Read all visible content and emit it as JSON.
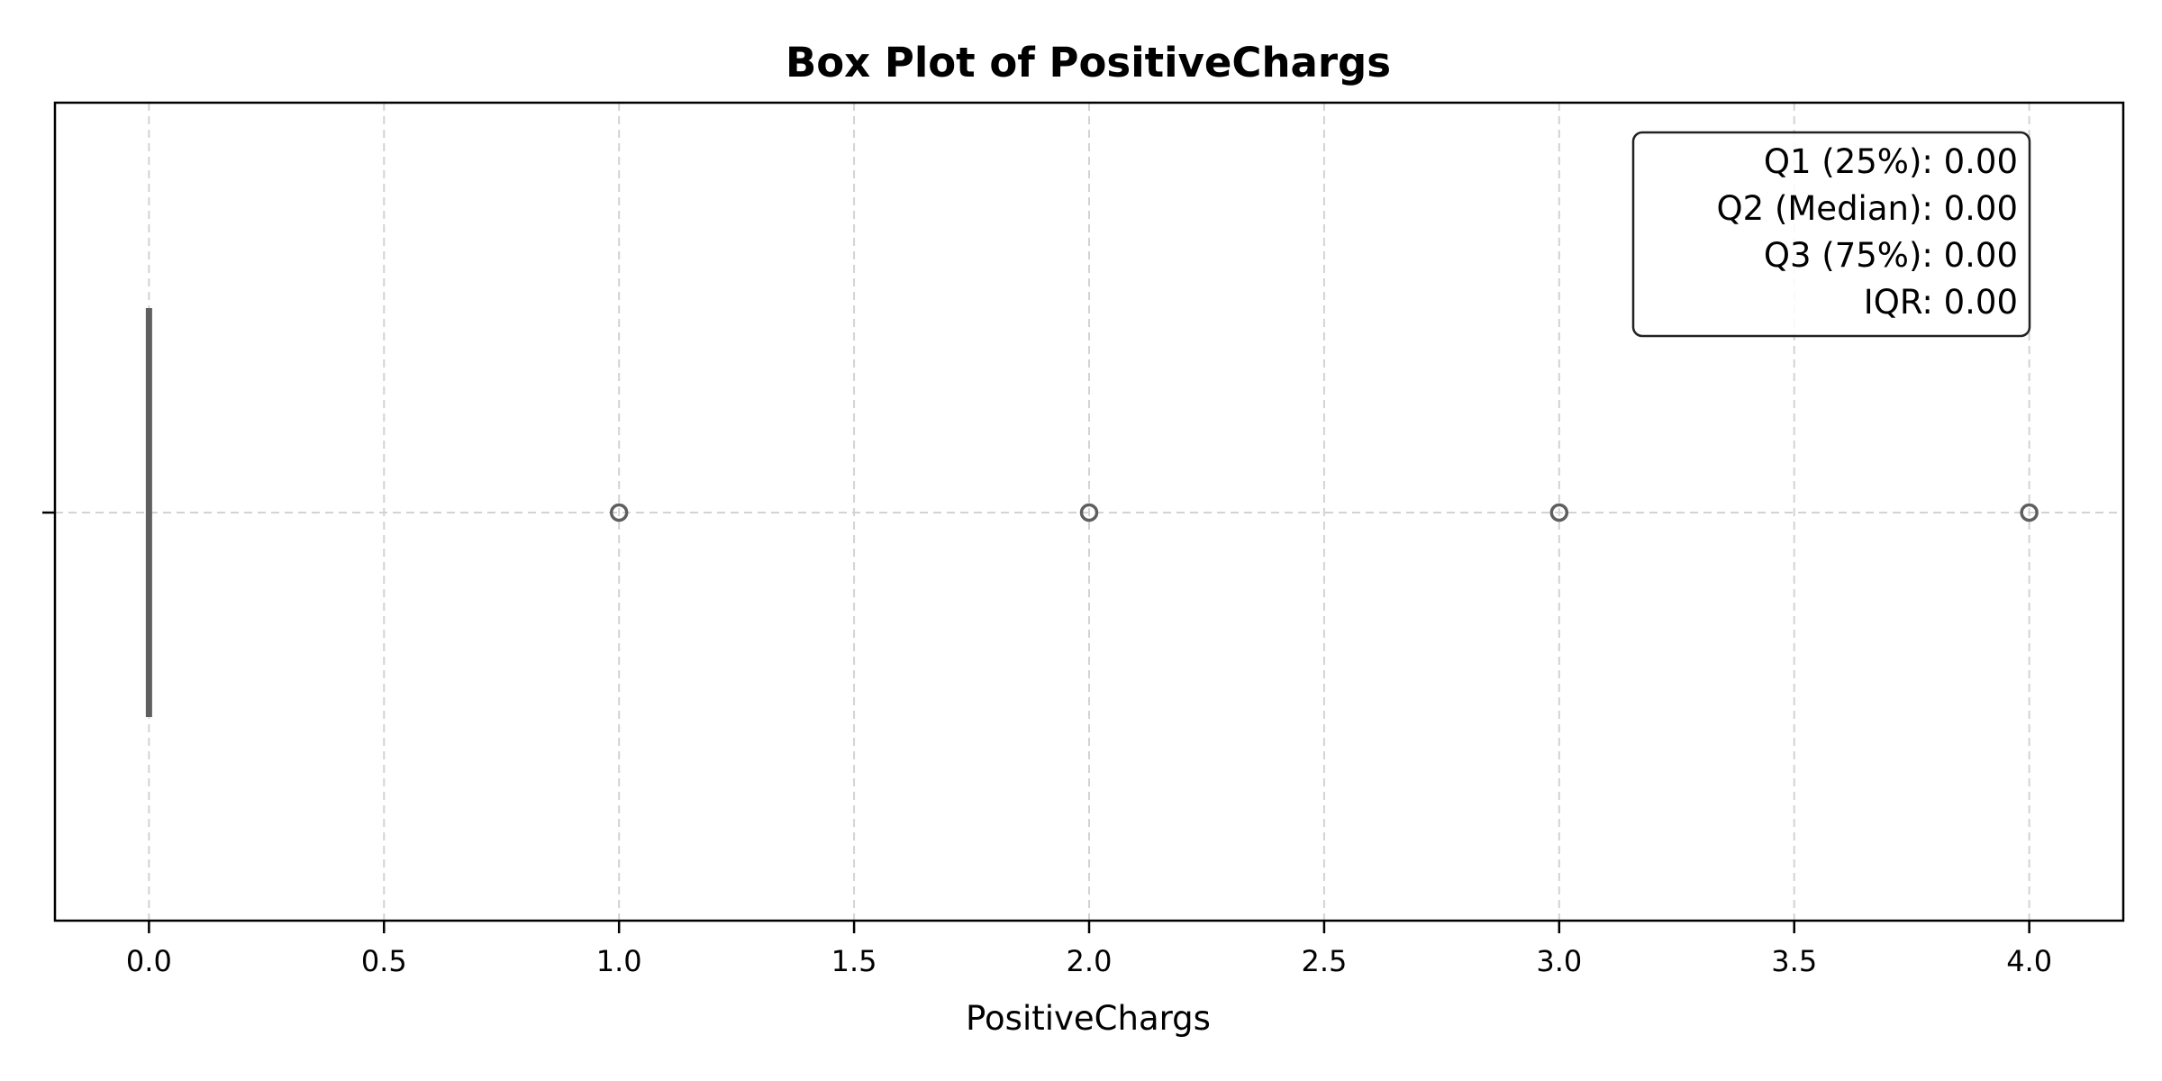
{
  "chart_data": {
    "type": "box",
    "title": "Box Plot of PositiveChargs",
    "xlabel": "PositiveChargs",
    "ylabel": "",
    "xlim": [
      -0.2,
      4.2
    ],
    "x_ticks": [
      0.0,
      0.5,
      1.0,
      1.5,
      2.0,
      2.5,
      3.0,
      3.5,
      4.0
    ],
    "x_tick_labels": [
      "0.0",
      "0.5",
      "1.0",
      "1.5",
      "2.0",
      "2.5",
      "3.0",
      "3.5",
      "4.0"
    ],
    "grid": true,
    "box": {
      "q1": 0.0,
      "median": 0.0,
      "q3": 0.0,
      "whisker_low": 0.0,
      "whisker_high": 0.0,
      "outliers": [
        1.0,
        2.0,
        3.0,
        4.0
      ],
      "color": "#5f5f5f"
    },
    "stats_box": {
      "placement": "top-right",
      "lines": [
        "Q1 (25%): 0.00",
        "Q2 (Median): 0.00",
        "Q3 (75%): 0.00",
        "IQR: 0.00"
      ]
    }
  }
}
